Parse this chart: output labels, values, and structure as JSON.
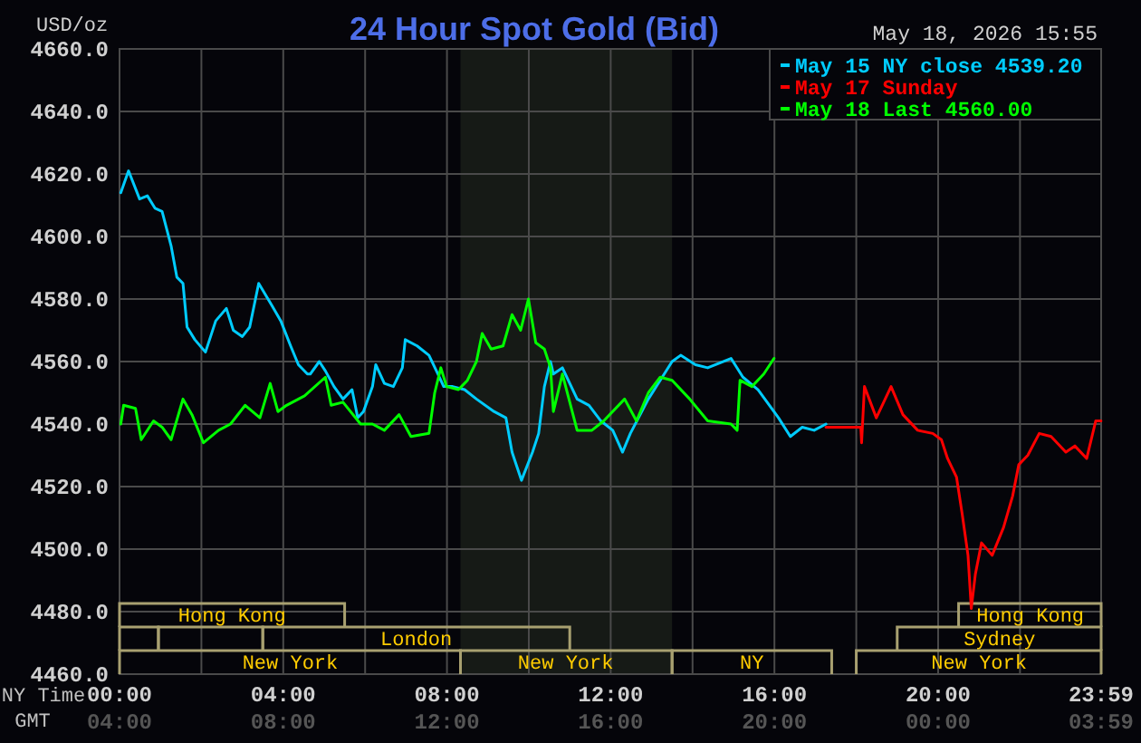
{
  "chart_data": {
    "type": "line",
    "title": "24 Hour Spot Gold (Bid)",
    "ylabel": "USD/oz",
    "xlabel": "NY Time",
    "x2label": "GMT",
    "annotations": [
      "May 18, 2026 15:55",
      "Hong Kong",
      "London",
      "New York",
      "New York",
      "NY",
      "New York",
      "Sydney",
      "Hong Kong"
    ],
    "xlim": [
      0,
      23.983
    ],
    "xticks": [
      {
        "value": 0,
        "label": "00:00"
      },
      {
        "value": 2,
        "label": null
      },
      {
        "value": 4,
        "label": "04:00"
      },
      {
        "value": 6,
        "label": null
      },
      {
        "value": 8,
        "label": "08:00"
      },
      {
        "value": 10,
        "label": null
      },
      {
        "value": 12,
        "label": "12:00"
      },
      {
        "value": 14,
        "label": null
      },
      {
        "value": 16,
        "label": "16:00"
      },
      {
        "value": 18,
        "label": null
      },
      {
        "value": 20,
        "label": "20:00"
      },
      {
        "value": 22,
        "label": null
      },
      {
        "value": 23.983,
        "label": "23:59"
      }
    ],
    "x2lim": [
      "2026-05-18T04:00",
      "2026-05-19T03:59"
    ],
    "x2ticks": [
      {
        "value": "2026-05-18T04:00",
        "label": "04:00"
      },
      {
        "value": "2026-05-18T08:00",
        "label": "08:00"
      },
      {
        "value": "2026-05-18T12:00",
        "label": "12:00"
      },
      {
        "value": "2026-05-18T16:00",
        "label": "16:00"
      },
      {
        "value": "2026-05-18T20:00",
        "label": "20:00"
      },
      {
        "value": "2026-05-19T00:00",
        "label": "00:00"
      },
      {
        "value": "2026-05-19T03:59",
        "label": "03:59"
      }
    ],
    "ylim": [
      4460,
      4660
    ],
    "yticks": [
      {
        "value": 4460,
        "label": "4460.0"
      },
      {
        "value": 4480,
        "label": "4480.0"
      },
      {
        "value": 4500,
        "label": "4500.0"
      },
      {
        "value": 4520,
        "label": "4520.0"
      },
      {
        "value": 4540,
        "label": "4540.0"
      },
      {
        "value": 4560,
        "label": "4560.0"
      },
      {
        "value": 4580,
        "label": "4580.0"
      },
      {
        "value": 4600,
        "label": "4600.0"
      },
      {
        "value": 4620,
        "label": "4620.0"
      },
      {
        "value": 4640,
        "label": "4640.0"
      },
      {
        "value": 4660,
        "label": "4660.0"
      }
    ],
    "grid": true,
    "legend": "top right",
    "line_style": "solid",
    "marker": "none",
    "bands": [
      {
        "axis": "x",
        "from": 8.33,
        "to": 13.5,
        "color": "#161a16"
      }
    ],
    "series": [
      {
        "name": "May 15 NY close 4539.20",
        "color": "#00ccff",
        "x": [
          0.03,
          0.22,
          0.49,
          0.68,
          0.87,
          1.04,
          1.26,
          1.4,
          1.55,
          1.65,
          1.84,
          2.1,
          2.35,
          2.61,
          2.78,
          3,
          3.18,
          3.4,
          3.72,
          3.94,
          4.18,
          4.37,
          4.59,
          4.66,
          4.88,
          5.03,
          5.24,
          5.46,
          5.68,
          5.82,
          5.96,
          6.18,
          6.26,
          6.47,
          6.69,
          6.91,
          6.98,
          7.27,
          7.56,
          7.78,
          7.92,
          8.14,
          8.43,
          8.72,
          9.15,
          9.44,
          9.59,
          9.82,
          10.09,
          10.24,
          10.38,
          10.53,
          10.6,
          10.82,
          11.18,
          11.47,
          11.76,
          12.05,
          12.29,
          12.48,
          12.92,
          13.21,
          13.5,
          13.71,
          14.07,
          14.37,
          14.94,
          15.23,
          15.6,
          16.1,
          16.39,
          16.68,
          16.97,
          17.26
        ],
        "values": [
          4614,
          4621,
          4612,
          4613,
          4609,
          4608,
          4597,
          4587,
          4585,
          4571,
          4567,
          4563,
          4573,
          4577,
          4570,
          4568,
          4571,
          4585,
          4578,
          4573,
          4565,
          4559,
          4556,
          4556,
          4560,
          4557,
          4552,
          4548,
          4551,
          4542,
          4544,
          4552,
          4559,
          4553,
          4552,
          4558,
          4567,
          4565,
          4562,
          4556,
          4552,
          4552,
          4551,
          4548,
          4544,
          4542,
          4531,
          4522,
          4531,
          4537,
          4552,
          4560,
          4556,
          4558,
          4548,
          4546,
          4541,
          4538,
          4531,
          4537,
          4548,
          4554,
          4560,
          4562,
          4559,
          4558,
          4561,
          4555,
          4551,
          4542,
          4536,
          4539,
          4538,
          4540
        ]
      },
      {
        "name": "May 17 Sunday",
        "color": "#ff0000",
        "x": [
          17.26,
          18.11,
          18.13,
          18.2,
          18.49,
          18.85,
          19.14,
          19.5,
          19.87,
          20.08,
          20.23,
          20.45,
          20.59,
          20.73,
          20.81,
          20.91,
          21.06,
          21.32,
          21.6,
          21.82,
          21.97,
          22.19,
          22.47,
          22.76,
          23.12,
          23.34,
          23.63,
          23.85,
          23.98
        ],
        "values": [
          4539,
          4539,
          4534,
          4552,
          4542,
          4552,
          4543,
          4538,
          4537,
          4535,
          4529,
          4523,
          4511,
          4498,
          4481,
          4492,
          4502,
          4498,
          4507,
          4517,
          4527,
          4530,
          4537,
          4536,
          4531,
          4533,
          4529,
          4541,
          4541
        ]
      },
      {
        "name": "May 18 Last 4560.00",
        "color": "#00ff00",
        "x": [
          0.03,
          0.1,
          0.39,
          0.53,
          0.83,
          1.04,
          1.26,
          1.55,
          1.77,
          2.05,
          2.42,
          2.71,
          3.07,
          3.43,
          3.68,
          3.87,
          4.08,
          4.52,
          5.03,
          5.17,
          5.46,
          5.89,
          6.18,
          6.47,
          6.83,
          7.12,
          7.56,
          7.7,
          7.85,
          7.99,
          8.28,
          8.5,
          8.72,
          8.86,
          9.08,
          9.37,
          9.59,
          9.8,
          9.99,
          10.17,
          10.38,
          10.53,
          10.6,
          10.82,
          11.18,
          11.54,
          11.83,
          12.34,
          12.63,
          12.92,
          13.21,
          13.5,
          13.93,
          14.37,
          14.94,
          15.09,
          15.16,
          15.45,
          15.74,
          15.99
        ],
        "values": [
          4540,
          4546,
          4545,
          4535,
          4541,
          4539,
          4535,
          4548,
          4543,
          4534,
          4538,
          4540,
          4546,
          4542,
          4553,
          4544,
          4546,
          4549,
          4555,
          4546,
          4547,
          4540,
          4540,
          4538,
          4543,
          4536,
          4537,
          4550,
          4558,
          4552,
          4551,
          4554,
          4560,
          4569,
          4564,
          4565,
          4575,
          4570,
          4580,
          4566,
          4564,
          4558,
          4544,
          4556,
          4538,
          4538,
          4541,
          4548,
          4541,
          4550,
          4555,
          4554,
          4548,
          4541,
          4540,
          4538,
          4554,
          4552,
          4556,
          4561
        ]
      }
    ]
  }
}
